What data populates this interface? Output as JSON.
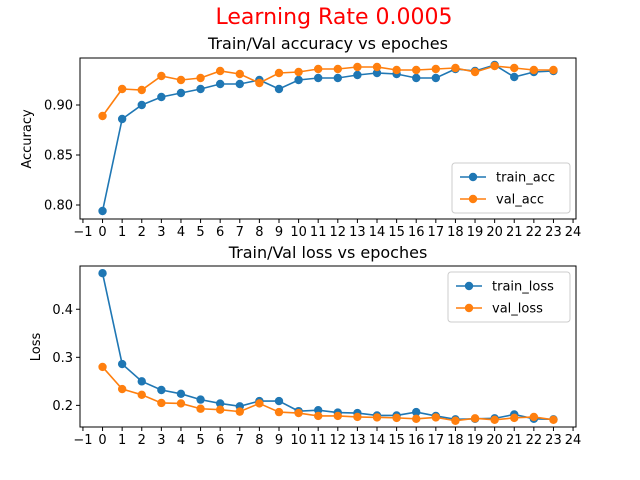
{
  "figure_title": "Learning Rate 0.0005",
  "chart_data": [
    {
      "type": "line",
      "title": "Train/Val accuracy vs epoches",
      "xlabel": "",
      "ylabel": "Accuracy",
      "x": [
        0,
        1,
        2,
        3,
        4,
        5,
        6,
        7,
        8,
        9,
        10,
        11,
        12,
        13,
        14,
        15,
        16,
        17,
        18,
        19,
        20,
        21,
        22,
        23
      ],
      "xlim": [
        -1.15,
        24.15
      ],
      "ylim": [
        0.786,
        0.947
      ],
      "xticks": [
        "−1",
        "0",
        "1",
        "2",
        "3",
        "4",
        "5",
        "6",
        "7",
        "8",
        "9",
        "10",
        "11",
        "12",
        "13",
        "14",
        "15",
        "16",
        "17",
        "18",
        "19",
        "20",
        "21",
        "22",
        "23",
        "24"
      ],
      "yticks": [
        "0.80",
        "0.85",
        "0.90"
      ],
      "legend_position": "lower right",
      "series": [
        {
          "name": "train_acc",
          "color": "#1f77b4",
          "values": [
            0.794,
            0.886,
            0.9,
            0.908,
            0.912,
            0.916,
            0.921,
            0.921,
            0.925,
            0.916,
            0.925,
            0.927,
            0.927,
            0.93,
            0.932,
            0.931,
            0.927,
            0.927,
            0.936,
            0.934,
            0.94,
            0.928,
            0.933,
            0.934
          ]
        },
        {
          "name": "val_acc",
          "color": "#ff7f0e",
          "values": [
            0.889,
            0.916,
            0.915,
            0.929,
            0.925,
            0.927,
            0.934,
            0.931,
            0.922,
            0.932,
            0.933,
            0.936,
            0.936,
            0.938,
            0.938,
            0.935,
            0.935,
            0.936,
            0.937,
            0.933,
            0.939,
            0.937,
            0.935,
            0.935
          ]
        }
      ]
    },
    {
      "type": "line",
      "title": "Train/Val loss vs epoches",
      "xlabel": "",
      "ylabel": "Loss",
      "x": [
        0,
        1,
        2,
        3,
        4,
        5,
        6,
        7,
        8,
        9,
        10,
        11,
        12,
        13,
        14,
        15,
        16,
        17,
        18,
        19,
        20,
        21,
        22,
        23
      ],
      "xlim": [
        -1.15,
        24.15
      ],
      "ylim": [
        0.155,
        0.49
      ],
      "xticks": [
        "−1",
        "0",
        "1",
        "2",
        "3",
        "4",
        "5",
        "6",
        "7",
        "8",
        "9",
        "10",
        "11",
        "12",
        "13",
        "14",
        "15",
        "16",
        "17",
        "18",
        "19",
        "20",
        "21",
        "22",
        "23",
        "24"
      ],
      "yticks": [
        "0.2",
        "0.3",
        "0.4"
      ],
      "legend_position": "upper right",
      "series": [
        {
          "name": "train_loss",
          "color": "#1f77b4",
          "values": [
            0.475,
            0.286,
            0.25,
            0.232,
            0.224,
            0.212,
            0.204,
            0.198,
            0.209,
            0.209,
            0.188,
            0.19,
            0.185,
            0.184,
            0.179,
            0.179,
            0.186,
            0.178,
            0.171,
            0.172,
            0.173,
            0.181,
            0.172,
            0.171
          ]
        },
        {
          "name": "val_loss",
          "color": "#ff7f0e",
          "values": [
            0.28,
            0.234,
            0.222,
            0.205,
            0.204,
            0.193,
            0.191,
            0.187,
            0.204,
            0.186,
            0.184,
            0.178,
            0.178,
            0.176,
            0.175,
            0.174,
            0.172,
            0.175,
            0.168,
            0.173,
            0.17,
            0.174,
            0.176,
            0.17
          ]
        }
      ]
    }
  ]
}
